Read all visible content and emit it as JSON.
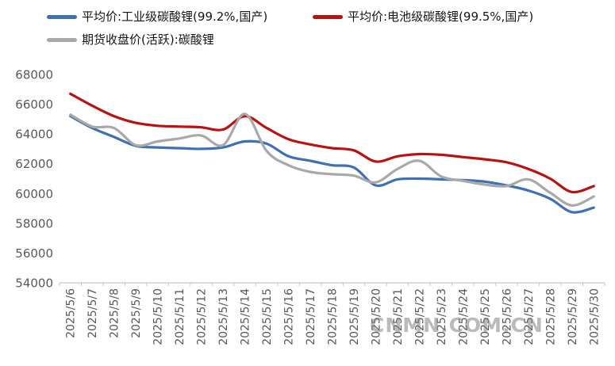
{
  "legend": {
    "items": [
      {
        "label": "平均价:工业级碳酸锂(99.2%,国产)",
        "color": "#3F70B3"
      },
      {
        "label": "平均价:电池级碳酸锂(99.5%,国产)",
        "color": "#B81311"
      },
      {
        "label": "期货收盘价(活跃):碳酸锂",
        "color": "#A9A9A9"
      }
    ]
  },
  "watermark": "CNMN.COM.CN",
  "colors": {
    "axis_line": "#C6C6C6",
    "tick_text": "#595959",
    "background": "#FFFFFF"
  },
  "chart_data": {
    "type": "line",
    "title": "",
    "xlabel": "",
    "ylabel": "",
    "grid": false,
    "legend_position": "top-left",
    "ylim": [
      54000,
      68000
    ],
    "y_ticks": [
      54000,
      56000,
      58000,
      60000,
      62000,
      64000,
      66000,
      68000
    ],
    "x": [
      "2025/5/6",
      "2025/5/7",
      "2025/5/8",
      "2025/5/9",
      "2025/5/10",
      "2025/5/11",
      "2025/5/12",
      "2025/5/13",
      "2025/5/14",
      "2025/5/15",
      "2025/5/16",
      "2025/5/17",
      "2025/5/18",
      "2025/5/19",
      "2025/5/20",
      "2025/5/21",
      "2025/5/22",
      "2025/5/23",
      "2025/5/24",
      "2025/5/25",
      "2025/5/26",
      "2025/5/27",
      "2025/5/28",
      "2025/5/29",
      "2025/5/30"
    ],
    "series": [
      {
        "name": "平均价:工业级碳酸锂(99.2%,国产)",
        "color": "#3F70B3",
        "values": [
          65200,
          64400,
          63800,
          63200,
          63100,
          63050,
          63000,
          63100,
          63500,
          63350,
          62500,
          62200,
          61900,
          61750,
          60550,
          60950,
          61000,
          60950,
          60900,
          60800,
          60550,
          60200,
          59650,
          58750,
          59050
        ]
      },
      {
        "name": "平均价:电池级碳酸锂(99.5%,国产)",
        "color": "#B81311",
        "values": [
          66700,
          65900,
          65200,
          64750,
          64550,
          64500,
          64450,
          64300,
          65200,
          64400,
          63650,
          63300,
          63050,
          62900,
          62150,
          62500,
          62650,
          62600,
          62450,
          62300,
          62100,
          61650,
          61000,
          60100,
          60500
        ]
      },
      {
        "name": "期货收盘价(活跃):碳酸锂",
        "color": "#A9A9A9",
        "values": [
          65300,
          64500,
          64400,
          63250,
          63500,
          63700,
          63900,
          63250,
          65350,
          62850,
          61900,
          61450,
          61300,
          61200,
          60750,
          61650,
          62200,
          61150,
          60850,
          60600,
          60500,
          60950,
          60050,
          59200,
          59800
        ]
      }
    ]
  }
}
